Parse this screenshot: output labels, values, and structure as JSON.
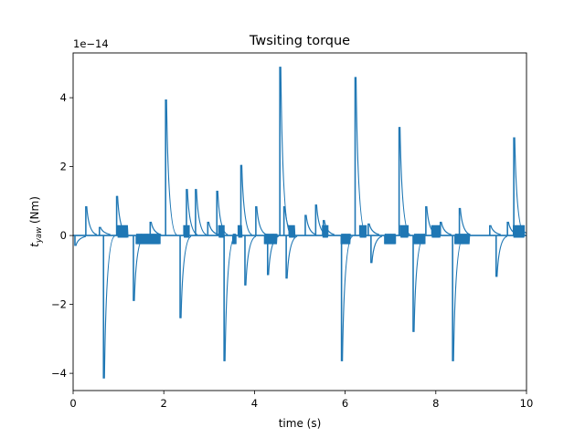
{
  "chart_data": {
    "type": "line",
    "title": "Twsiting torque",
    "xlabel": "time (s)",
    "ylabel_main": "t",
    "ylabel_sub": "yaw",
    "ylabel_unit": " (Nm)",
    "y_offset_text": "1e−14",
    "y_scale_exponent": -14,
    "xlim": [
      0,
      10
    ],
    "ylim": [
      -4.5,
      5.3
    ],
    "xticks": [
      0,
      2,
      4,
      6,
      8,
      10
    ],
    "yticks": [
      -4,
      -2,
      0,
      2,
      4
    ],
    "grid": false,
    "legend": "none",
    "series": [
      {
        "color": "#1f77b4",
        "baseline": 0,
        "spikes_x": [
          0.04,
          0.28,
          0.58,
          0.67,
          0.96,
          1.33,
          1.7,
          2.04,
          2.36,
          2.5,
          2.7,
          2.97,
          3.17,
          3.33,
          3.7,
          3.79,
          4.03,
          4.29,
          4.56,
          4.65,
          4.7,
          5.12,
          5.35,
          5.52,
          5.92,
          6.22,
          6.51,
          6.57,
          7.19,
          7.5,
          7.78,
          8.1,
          8.37,
          8.52,
          9.19,
          9.33,
          9.58,
          9.72,
          9.85
        ],
        "spikes_y": [
          -0.3,
          0.85,
          0.25,
          -4.15,
          1.15,
          -1.9,
          0.4,
          3.95,
          -2.4,
          1.35,
          1.35,
          0.4,
          1.3,
          -3.65,
          2.05,
          -1.45,
          0.85,
          -1.15,
          4.9,
          0.85,
          -1.25,
          0.6,
          0.9,
          0.45,
          -3.65,
          4.6,
          0.35,
          -0.8,
          3.15,
          -2.8,
          0.85,
          0.4,
          -3.65,
          0.8,
          0.3,
          -1.2,
          0.4,
          2.85,
          0.25
        ],
        "burst_start": [
          0.98,
          2.44,
          3.21,
          3.64,
          4.76,
          5.5,
          6.32,
          7.22,
          7.91,
          9.71
        ],
        "burst_end": [
          1.21,
          2.56,
          3.33,
          3.73,
          4.9,
          5.63,
          6.47,
          7.39,
          8.09,
          9.96
        ],
        "burst_amplitude": [
          0.3,
          0.3,
          0.3,
          0.3,
          0.3,
          0.3,
          0.3,
          0.3,
          0.3,
          0.3
        ],
        "negburst_start": [
          1.39,
          3.52,
          4.22,
          5.91,
          6.87,
          7.52,
          8.42
        ],
        "negburst_end": [
          1.92,
          3.6,
          4.5,
          6.12,
          7.11,
          7.77,
          8.75
        ],
        "negburst_amplitude": [
          0.25,
          0.25,
          0.25,
          0.25,
          0.25,
          0.25,
          0.25
        ]
      }
    ]
  }
}
